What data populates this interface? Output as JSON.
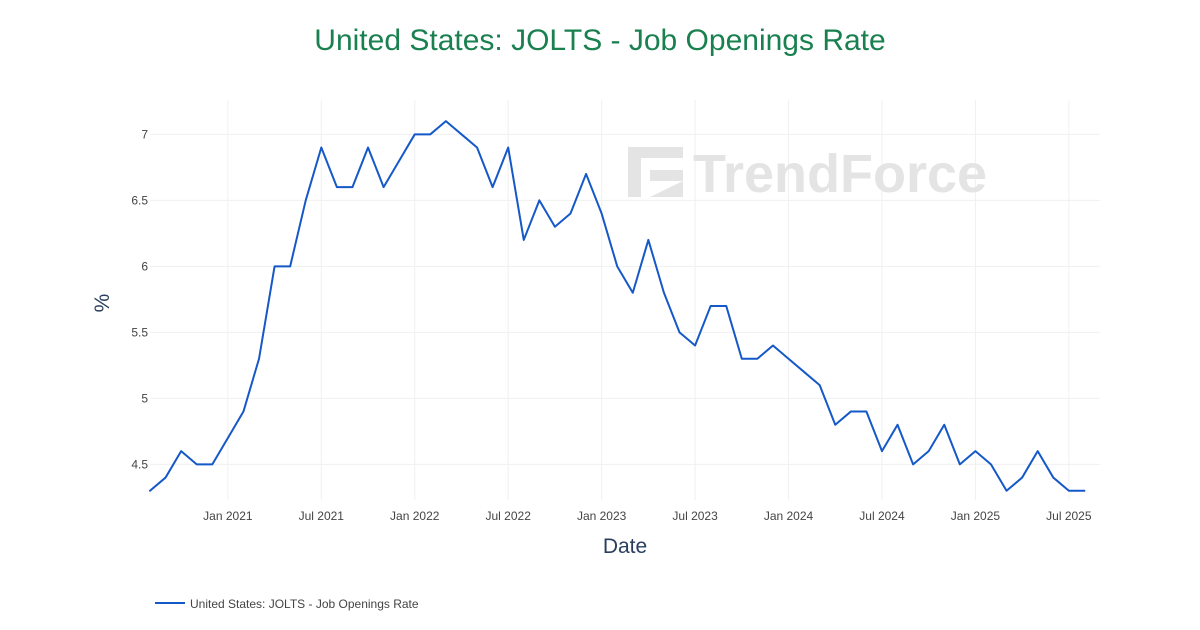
{
  "colors": {
    "title": "#1a8050",
    "line": "#1558c8",
    "grid": "#f0f0f0",
    "watermark": "#e4e4e4"
  },
  "watermark": {
    "text": "TrendForce",
    "icon": "trendforce-logo-icon"
  },
  "chart_data": {
    "type": "line",
    "title": "United States: JOLTS - Job Openings Rate",
    "xlabel": "Date",
    "ylabel": "%",
    "x_tick_labels": [
      "Jan 2021",
      "Jul 2021",
      "Jan 2022",
      "Jul 2022",
      "Jan 2023",
      "Jul 2023",
      "Jan 2024",
      "Jul 2024",
      "Jan 2025",
      "Jul 2025"
    ],
    "y_ticks": [
      4.5,
      5,
      5.5,
      6,
      6.5,
      7
    ],
    "y_tick_labels": [
      "4.5",
      "5",
      "5.5",
      "6",
      "6.5",
      "7"
    ],
    "xlim": [
      "2020-08",
      "2025-09"
    ],
    "ylim": [
      4.23,
      7.26
    ],
    "grid": true,
    "legend": {
      "placement": "bottom-left"
    },
    "series": [
      {
        "name": "United States: JOLTS - Job Openings Rate",
        "x": [
          "2020-08",
          "2020-09",
          "2020-10",
          "2020-11",
          "2020-12",
          "2021-01",
          "2021-02",
          "2021-03",
          "2021-04",
          "2021-05",
          "2021-06",
          "2021-07",
          "2021-08",
          "2021-09",
          "2021-10",
          "2021-11",
          "2021-12",
          "2022-01",
          "2022-02",
          "2022-03",
          "2022-04",
          "2022-05",
          "2022-06",
          "2022-07",
          "2022-08",
          "2022-09",
          "2022-10",
          "2022-11",
          "2022-12",
          "2023-01",
          "2023-02",
          "2023-03",
          "2023-04",
          "2023-05",
          "2023-06",
          "2023-07",
          "2023-08",
          "2023-09",
          "2023-10",
          "2023-11",
          "2023-12",
          "2024-01",
          "2024-02",
          "2024-03",
          "2024-04",
          "2024-05",
          "2024-06",
          "2024-07",
          "2024-08",
          "2024-09",
          "2024-10",
          "2024-11",
          "2024-12",
          "2025-01",
          "2025-02",
          "2025-03",
          "2025-04",
          "2025-05",
          "2025-06",
          "2025-07",
          "2025-08"
        ],
        "values": [
          4.3,
          4.4,
          4.6,
          4.5,
          4.5,
          4.7,
          4.9,
          5.3,
          6.0,
          6.0,
          6.5,
          6.9,
          6.6,
          6.6,
          6.9,
          6.6,
          6.8,
          7.0,
          7.0,
          7.1,
          7.0,
          6.9,
          6.6,
          6.9,
          6.2,
          6.5,
          6.3,
          6.4,
          6.7,
          6.4,
          6.0,
          5.8,
          6.2,
          5.8,
          5.5,
          5.4,
          5.7,
          5.7,
          5.3,
          5.3,
          5.4,
          5.3,
          5.2,
          5.1,
          4.8,
          4.9,
          4.9,
          4.6,
          4.8,
          4.5,
          4.6,
          4.8,
          4.5,
          4.6,
          4.5,
          4.3,
          4.4,
          4.6,
          4.4,
          4.3,
          4.3
        ]
      }
    ]
  }
}
